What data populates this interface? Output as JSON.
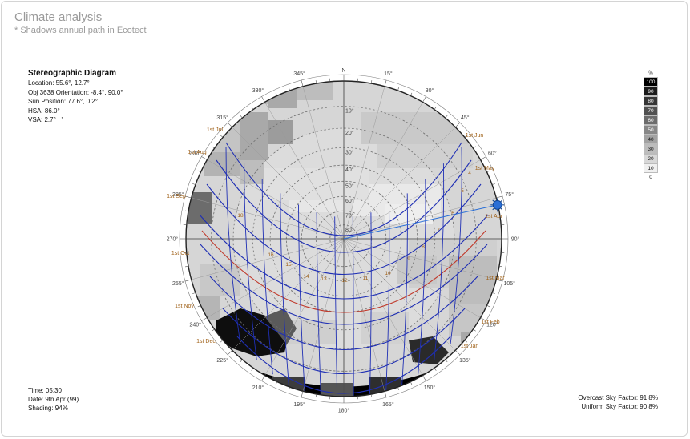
{
  "page": {
    "title": "Climate analysis",
    "subtitle": "* Shadows annual path in Ecotect"
  },
  "info": {
    "heading": "Stereographic Diagram",
    "location": "Location: 55.6°, 12.7°",
    "orientation": "Obj 3638 Orientation: -8.4°, 90.0°",
    "sun_position": "Sun Position: 77.6°, 0.2°",
    "hsa": "HSA: 86.0°",
    "vsa": "VSA: 2.7°",
    "vsa_mark": "'"
  },
  "status": {
    "time": "Time: 05:30",
    "date": "Date: 9th Apr (99)",
    "shading": "Shading: 94%"
  },
  "factors": {
    "overcast": "Overcast Sky Factor: 91.8%",
    "uniform": "Uniform Sky Factor: 90.8%"
  },
  "legend": {
    "unit": "%",
    "steps": [
      {
        "label": "100",
        "color": "#000000",
        "text": "#ffffff"
      },
      {
        "label": "90",
        "color": "#1b1b1b",
        "text": "#ffffff"
      },
      {
        "label": "80",
        "color": "#363636",
        "text": "#ffffff"
      },
      {
        "label": "70",
        "color": "#515151",
        "text": "#ffffff"
      },
      {
        "label": "60",
        "color": "#6c6c6c",
        "text": "#ffffff"
      },
      {
        "label": "50",
        "color": "#878787",
        "text": "#ffffff"
      },
      {
        "label": "40",
        "color": "#a2a2a2",
        "text": "#111111"
      },
      {
        "label": "30",
        "color": "#bdbdbd",
        "text": "#111111"
      },
      {
        "label": "20",
        "color": "#d8d8d8",
        "text": "#111111"
      },
      {
        "label": "10",
        "color": "#f0f0f0",
        "text": "#111111"
      },
      {
        "label": "0",
        "color": "#ffffff",
        "text": "#111111"
      }
    ]
  },
  "diagram": {
    "north_label": "N",
    "azimuth_labels": [
      "345°",
      "15°",
      "330°",
      "30°",
      "315°",
      "45°",
      "300°",
      "60°",
      "285°",
      "75°",
      "270°",
      "90°",
      "255°",
      "105°",
      "240°",
      "120°",
      "225°",
      "135°",
      "210°",
      "150°",
      "195°",
      "165°",
      "180°"
    ],
    "altitude_labels": [
      "10°",
      "20°",
      "30°",
      "40°",
      "50°",
      "60°",
      "70°",
      "80°"
    ],
    "month_labels": [
      "1st Jul",
      "1st Jun",
      "1st Aug",
      "1st May",
      "1st Sep",
      "1st Apr",
      "1st Oct",
      "1st Mar",
      "1st Nov",
      "1st Feb",
      "1st Dec",
      "1st Jan"
    ],
    "hour_labels": [
      "18",
      "16",
      "15",
      "14",
      "13",
      "12",
      "11",
      "10",
      "9",
      "8",
      "7",
      "6",
      "5",
      "4"
    ],
    "sun_azimuth": 77.6,
    "sun_altitude": 0.2
  },
  "colors": {
    "sunpath": "#1f2fb4",
    "equinox": "#c0392b",
    "label": "#a0621a",
    "sun_marker": "#2b6fd6"
  }
}
